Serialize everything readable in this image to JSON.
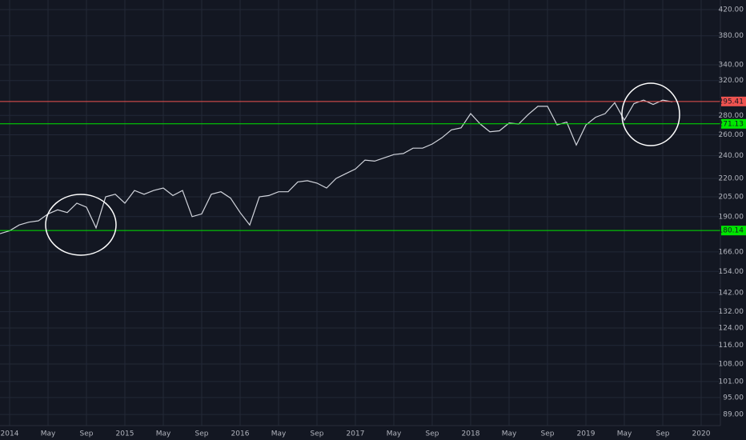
{
  "chart_data": {
    "type": "line",
    "log_scale": true,
    "grid": true,
    "background": "#131722",
    "x": [
      "2013-12",
      "2014-01",
      "2014-02",
      "2014-03",
      "2014-04",
      "2014-05",
      "2014-06",
      "2014-07",
      "2014-08",
      "2014-09",
      "2014-10",
      "2014-11",
      "2014-12",
      "2015-01",
      "2015-02",
      "2015-03",
      "2015-04",
      "2015-05",
      "2015-06",
      "2015-07",
      "2015-08",
      "2015-09",
      "2015-10",
      "2015-11",
      "2015-12",
      "2016-01",
      "2016-02",
      "2016-03",
      "2016-04",
      "2016-05",
      "2016-06",
      "2016-07",
      "2016-08",
      "2016-09",
      "2016-10",
      "2016-11",
      "2016-12",
      "2017-01",
      "2017-02",
      "2017-03",
      "2017-04",
      "2017-05",
      "2017-06",
      "2017-07",
      "2017-08",
      "2017-09",
      "2017-10",
      "2017-11",
      "2017-12",
      "2018-01",
      "2018-02",
      "2018-03",
      "2018-04",
      "2018-05",
      "2018-06",
      "2018-07",
      "2018-08",
      "2018-09",
      "2018-10",
      "2018-11",
      "2018-12",
      "2019-01",
      "2019-02",
      "2019-03",
      "2019-04",
      "2019-05",
      "2019-06",
      "2019-07",
      "2019-08",
      "2019-09",
      "2019-10"
    ],
    "series": [
      {
        "color": "#d1d4dc",
        "values": [
          178,
          180,
          184,
          186,
          187,
          192,
          195,
          193,
          200,
          197,
          182,
          205,
          207,
          200,
          210,
          207,
          210,
          212,
          206,
          210,
          190,
          192,
          207,
          209,
          204,
          193,
          184,
          205,
          206,
          209,
          209,
          217,
          218,
          216,
          212,
          220,
          224,
          228,
          236,
          235,
          238,
          241,
          242,
          247,
          247,
          251,
          257,
          265,
          267,
          282,
          271,
          263,
          264,
          272,
          271,
          281,
          290,
          290,
          270,
          273,
          250,
          270,
          278,
          282,
          294,
          275,
          293,
          297,
          292,
          297,
          295
        ]
      }
    ],
    "xlim": [
      "2013-12",
      "2020-03"
    ],
    "xticks": [
      {
        "value": "2014-01",
        "label": "2014"
      },
      {
        "value": "2014-05",
        "label": "May"
      },
      {
        "value": "2014-09",
        "label": "Sep"
      },
      {
        "value": "2015-01",
        "label": "2015"
      },
      {
        "value": "2015-05",
        "label": "May"
      },
      {
        "value": "2015-09",
        "label": "Sep"
      },
      {
        "value": "2016-01",
        "label": "2016"
      },
      {
        "value": "2016-05",
        "label": "May"
      },
      {
        "value": "2016-09",
        "label": "Sep"
      },
      {
        "value": "2017-01",
        "label": "2017"
      },
      {
        "value": "2017-05",
        "label": "May"
      },
      {
        "value": "2017-09",
        "label": "Sep"
      },
      {
        "value": "2018-01",
        "label": "2018"
      },
      {
        "value": "2018-05",
        "label": "May"
      },
      {
        "value": "2018-09",
        "label": "Sep"
      },
      {
        "value": "2019-01",
        "label": "2019"
      },
      {
        "value": "2019-05",
        "label": "May"
      },
      {
        "value": "2019-09",
        "label": "Sep"
      },
      {
        "value": "2020-01",
        "label": "2020"
      }
    ],
    "ylim": [
      85.3,
      435.8
    ],
    "yticks": [
      {
        "value": 420,
        "label": "420.00"
      },
      {
        "value": 380,
        "label": "380.00"
      },
      {
        "value": 340,
        "label": "340.00"
      },
      {
        "value": 320,
        "label": "320.00"
      },
      {
        "value": 280,
        "label": "280.00"
      },
      {
        "value": 260,
        "label": "260.00"
      },
      {
        "value": 240,
        "label": "240.00"
      },
      {
        "value": 220,
        "label": "220.00"
      },
      {
        "value": 205,
        "label": "205.00"
      },
      {
        "value": 190,
        "label": "190.00"
      },
      {
        "value": 166,
        "label": "166.00"
      },
      {
        "value": 154,
        "label": "154.00"
      },
      {
        "value": 142,
        "label": "142.00"
      },
      {
        "value": 132,
        "label": "132.00"
      },
      {
        "value": 124,
        "label": "124.00"
      },
      {
        "value": 116,
        "label": "116.00"
      },
      {
        "value": 108,
        "label": "108.00"
      },
      {
        "value": 101,
        "label": "101.00"
      },
      {
        "value": 95,
        "label": "95.00"
      },
      {
        "value": 89,
        "label": "89.00"
      }
    ],
    "hlines": [
      {
        "value": 295.41,
        "color": "#ef5350"
      },
      {
        "value": 271.13,
        "color": "#00e600"
      },
      {
        "value": 180.14,
        "color": "#00e600"
      }
    ]
  }
}
